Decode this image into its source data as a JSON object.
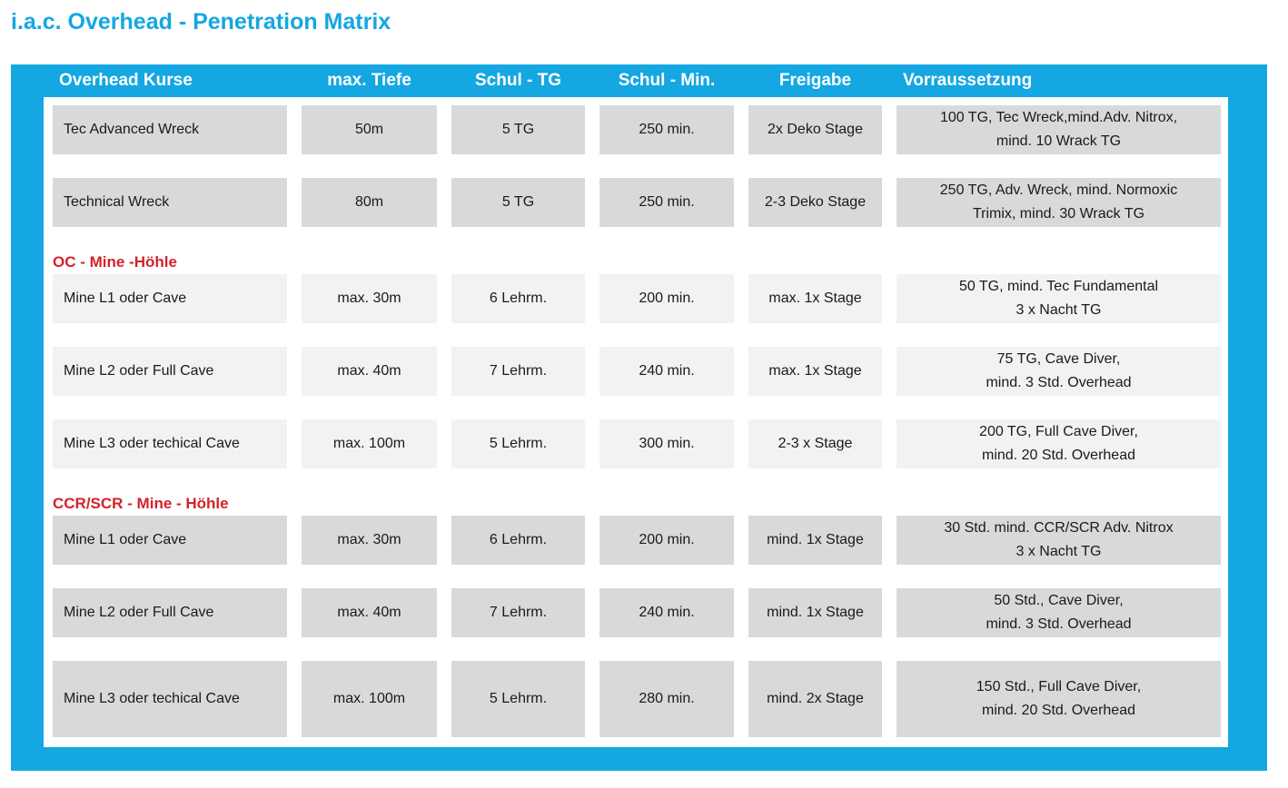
{
  "title": "i.a.c. Overhead - Penetration Matrix",
  "colors": {
    "accent_cyan": "#14A7E2",
    "section_red": "#D3222A",
    "cell_dark_gray": "#D9D9D9",
    "cell_light_gray": "#F2F2F2"
  },
  "table": {
    "headers": [
      "Overhead Kurse",
      "max. Tiefe",
      "Schul - TG",
      "Schul - Min.",
      "Freigabe",
      "Vorraussetzung"
    ],
    "sections": [
      {
        "label": "",
        "shade": "dark",
        "rows": [
          {
            "kurs": "Tec Advanced Wreck",
            "tiefe": "50m",
            "tg": "5 TG",
            "min": "250 min.",
            "freigabe": "2x Deko Stage",
            "voraussetzung": [
              "100 TG, Tec Wreck,mind.Adv. Nitrox,",
              "mind. 10 Wrack TG"
            ]
          },
          {
            "kurs": "Technical Wreck",
            "tiefe": "80m",
            "tg": "5 TG",
            "min": "250 min.",
            "freigabe": "2-3 Deko Stage",
            "voraussetzung": [
              "250 TG, Adv. Wreck, mind. Normoxic",
              "Trimix, mind. 30 Wrack TG"
            ]
          }
        ]
      },
      {
        "label": "OC - Mine -Höhle",
        "shade": "light",
        "rows": [
          {
            "kurs": "Mine L1 oder Cave",
            "tiefe": "max. 30m",
            "tg": "6 Lehrm.",
            "min": "200 min.",
            "freigabe": "max. 1x Stage",
            "voraussetzung": [
              "50 TG, mind. Tec Fundamental",
              "3 x Nacht TG"
            ]
          },
          {
            "kurs": "Mine L2 oder Full Cave",
            "tiefe": "max. 40m",
            "tg": "7 Lehrm.",
            "min": "240 min.",
            "freigabe": "max. 1x Stage",
            "voraussetzung": [
              "75 TG, Cave Diver,",
              "mind. 3 Std. Overhead"
            ]
          },
          {
            "kurs": "Mine L3 oder techical Cave",
            "tiefe": "max. 100m",
            "tg": "5 Lehrm.",
            "min": "300 min.",
            "freigabe": "2-3 x Stage",
            "voraussetzung": [
              "200 TG, Full Cave Diver,",
              "mind. 20 Std. Overhead"
            ]
          }
        ]
      },
      {
        "label": "CCR/SCR - Mine - Höhle",
        "shade": "dark",
        "rows": [
          {
            "kurs": "Mine L1 oder Cave",
            "tiefe": "max. 30m",
            "tg": "6 Lehrm.",
            "min": "200 min.",
            "freigabe": "mind. 1x Stage",
            "voraussetzung": [
              "30 Std. mind. CCR/SCR Adv. Nitrox",
              "3 x Nacht TG"
            ]
          },
          {
            "kurs": "Mine L2 oder Full Cave",
            "tiefe": "max. 40m",
            "tg": "7 Lehrm.",
            "min": "240 min.",
            "freigabe": "mind. 1x Stage",
            "voraussetzung": [
              "50 Std., Cave Diver,",
              "mind. 3 Std. Overhead"
            ]
          },
          {
            "kurs": "Mine L3 oder techical Cave",
            "tiefe": "max. 100m",
            "tg": "5 Lehrm.",
            "min": "280 min.",
            "freigabe": "mind. 2x Stage",
            "voraussetzung": [
              "150 Std., Full Cave Diver,",
              "mind. 20 Std. Overhead"
            ],
            "tall": true
          }
        ]
      }
    ]
  }
}
